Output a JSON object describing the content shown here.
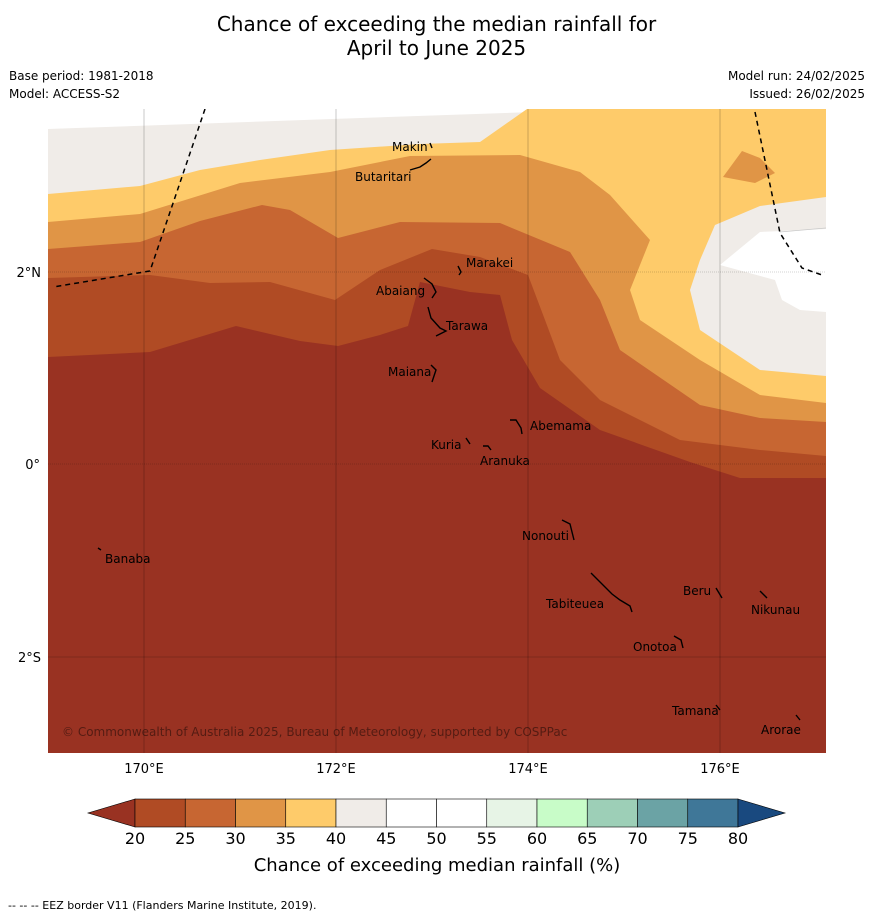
{
  "title_line1": "Chance of exceeding the median rainfall for",
  "title_line2": "April to June 2025",
  "info": {
    "base_period": "Base period: 1981-2018",
    "model": "Model: ACCESS-S2",
    "model_run": "Model run: 24/02/2025",
    "issued": "Issued: 26/02/2025"
  },
  "copyright": "© Commonwealth of Australia 2025, Bureau of Meteorology, supported by COSPPac",
  "footer": "--  --  -- EEZ border V11 (Flanders Marine Institute, 2019).",
  "map": {
    "lon_labels": [
      "170°E",
      "172°E",
      "174°E",
      "176°E"
    ],
    "lat_labels": [
      "2°N",
      "0°",
      "2°S"
    ],
    "islands": [
      {
        "name": "Makin"
      },
      {
        "name": "Butaritari"
      },
      {
        "name": "Marakei"
      },
      {
        "name": "Abaiang"
      },
      {
        "name": "Tarawa"
      },
      {
        "name": "Maiana"
      },
      {
        "name": "Abemama"
      },
      {
        "name": "Kuria"
      },
      {
        "name": "Aranuka"
      },
      {
        "name": "Nonouti"
      },
      {
        "name": "Banaba"
      },
      {
        "name": "Beru"
      },
      {
        "name": "Nikunau"
      },
      {
        "name": "Tabiteuea"
      },
      {
        "name": "Onotoa"
      },
      {
        "name": "Tamana"
      },
      {
        "name": "Arorae"
      }
    ]
  },
  "colorbar": {
    "label": "Chance of exceeding median rainfall (%)",
    "ticks": [
      "20",
      "25",
      "30",
      "35",
      "40",
      "45",
      "50",
      "55",
      "60",
      "65",
      "70",
      "75",
      "80"
    ],
    "colors": [
      "#993222",
      "#b04b24",
      "#c76632",
      "#e09546",
      "#fecb6a",
      "#f0ece8",
      "#ffffff",
      "#ffffff",
      "#e7f4e6",
      "#c8fcc8",
      "#9dcfb7",
      "#6ba3a5",
      "#3f7798",
      "#19497f"
    ]
  }
}
